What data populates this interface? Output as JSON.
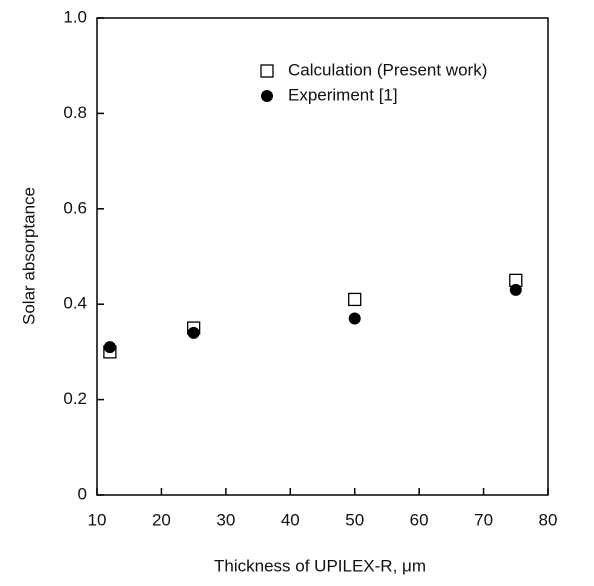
{
  "chart_data": {
    "type": "scatter",
    "xlabel": "Thickness of UPILEX-R, μm",
    "ylabel": "Solar absorptance",
    "xlim": [
      10,
      80
    ],
    "xticks": [
      10,
      20,
      30,
      40,
      50,
      60,
      70,
      80
    ],
    "ylim": [
      0,
      1
    ],
    "yticks": [
      0,
      0.2,
      0.4,
      0.6,
      0.8,
      {
        "value": 1,
        "label": "1.0"
      }
    ],
    "legend": "upper center",
    "series": [
      {
        "name": "Calculation (Present work)",
        "color": "#000000",
        "marker": "square",
        "x": [
          12,
          25,
          50,
          75
        ],
        "values": [
          0.3,
          0.35,
          0.41,
          0.45
        ]
      },
      {
        "name": "Experiment [1]",
        "color": "#000000",
        "marker": "circle",
        "x": [
          12,
          25,
          50,
          75
        ],
        "values": [
          0.31,
          0.34,
          0.37,
          0.43
        ]
      }
    ]
  }
}
